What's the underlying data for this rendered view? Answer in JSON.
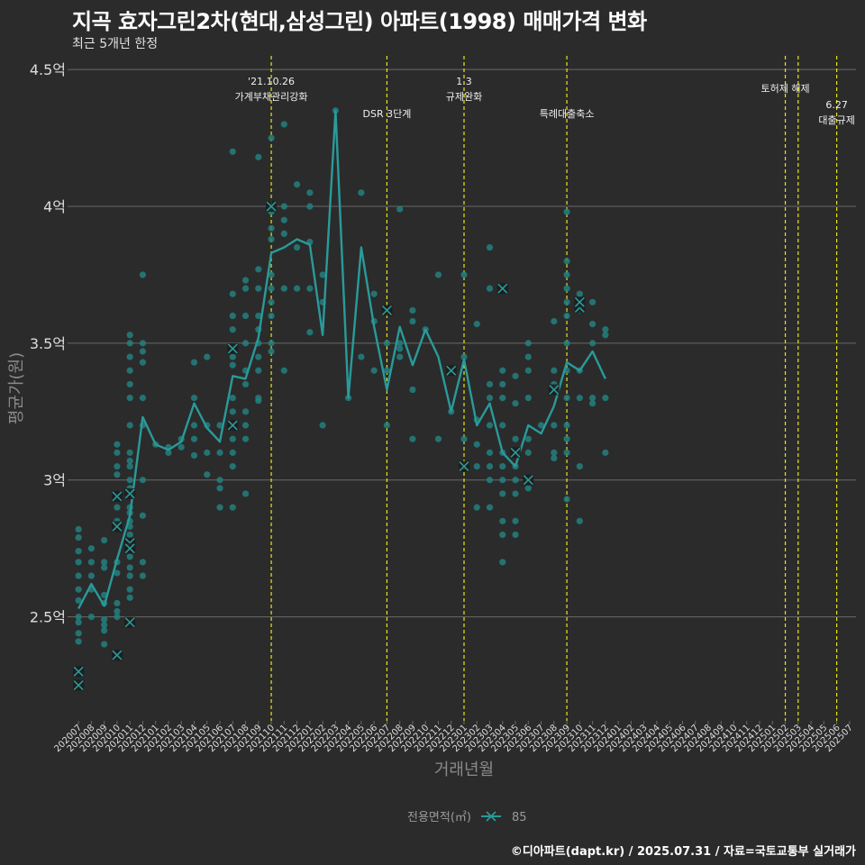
{
  "header": {
    "title": "지곡 효자그린2차(현대,삼성그린) 아파트(1998) 매매가격 변화",
    "subtitle": "최근 5개년 한정"
  },
  "footer": {
    "credit": "©디아파트(dapt.kr) / 2025.07.31 / 자료=국토교통부 실거래가"
  },
  "colors": {
    "background": "#2b2b2b",
    "grid": "#6a6a6a",
    "series": "#2a9a9a",
    "points": "#23807f",
    "event_line": "#e6e619",
    "text": "#dddddd"
  },
  "chart_data": {
    "type": "line",
    "xlabel": "거래년월",
    "ylabel": "평균가(원)",
    "ylim": [
      2.12,
      4.55
    ],
    "yticks": [
      {
        "value": 2.5,
        "label": "2.5억"
      },
      {
        "value": 3.0,
        "label": "3억"
      },
      {
        "value": 3.5,
        "label": "3.5억"
      },
      {
        "value": 4.0,
        "label": "4억"
      },
      {
        "value": 4.5,
        "label": "4.5억"
      }
    ],
    "categories": [
      "202007",
      "202008",
      "202009",
      "202010",
      "202011",
      "202012",
      "202101",
      "202102",
      "202103",
      "202104",
      "202105",
      "202106",
      "202107",
      "202108",
      "202109",
      "202110",
      "202111",
      "202112",
      "202201",
      "202202",
      "202203",
      "202204",
      "202205",
      "202206",
      "202207",
      "202208",
      "202209",
      "202210",
      "202211",
      "202212",
      "202301",
      "202302",
      "202303",
      "202304",
      "202305",
      "202306",
      "202307",
      "202308",
      "202309",
      "202310",
      "202311",
      "202312",
      "202401",
      "202402",
      "202403",
      "202404",
      "202405",
      "202406",
      "202407",
      "202408",
      "202409",
      "202410",
      "202411",
      "202412",
      "202501",
      "202502",
      "202503",
      "202504",
      "202505",
      "202506",
      "202507"
    ],
    "legend": {
      "title": "전용면적(㎡)",
      "entries": [
        "85"
      ]
    },
    "series": [
      {
        "name": "85",
        "points": [
          [
            "202007",
            2.53
          ],
          [
            "202008",
            2.62
          ],
          [
            "202009",
            2.54
          ],
          [
            "202010",
            2.71
          ],
          [
            "202011",
            2.87
          ],
          [
            "202012",
            3.23
          ],
          [
            "202101",
            3.13
          ],
          [
            "202102",
            3.11
          ],
          [
            "202103",
            3.14
          ],
          [
            "202104",
            3.28
          ],
          [
            "202105",
            3.19
          ],
          [
            "202106",
            3.14
          ],
          [
            "202107",
            3.38
          ],
          [
            "202108",
            3.37
          ],
          [
            "202109",
            3.52
          ],
          [
            "202110",
            3.83
          ],
          [
            "202111",
            3.85
          ],
          [
            "202112",
            3.88
          ],
          [
            "202201",
            3.86
          ],
          [
            "202202",
            3.53
          ],
          [
            "202203",
            4.35
          ],
          [
            "202204",
            3.3
          ],
          [
            "202205",
            3.85
          ],
          [
            "202206",
            3.56
          ],
          [
            "202207",
            3.33
          ],
          [
            "202208",
            3.56
          ],
          [
            "202209",
            3.42
          ],
          [
            "202210",
            3.55
          ],
          [
            "202211",
            3.45
          ],
          [
            "202212",
            3.25
          ],
          [
            "202301",
            3.44
          ],
          [
            "202302",
            3.2
          ],
          [
            "202303",
            3.28
          ],
          [
            "202304",
            3.1
          ],
          [
            "202305",
            3.05
          ],
          [
            "202306",
            3.2
          ],
          [
            "202307",
            3.17
          ],
          [
            "202308",
            3.27
          ],
          [
            "202309",
            3.43
          ],
          [
            "202310",
            3.4
          ],
          [
            "202311",
            3.47
          ],
          [
            "202312",
            3.37
          ]
        ]
      }
    ],
    "markers_x": [
      [
        "202007",
        2.3
      ],
      [
        "202007",
        2.25
      ],
      [
        "202010",
        2.36
      ],
      [
        "202010",
        2.94
      ],
      [
        "202010",
        2.83
      ],
      [
        "202011",
        2.95
      ],
      [
        "202011",
        2.77
      ],
      [
        "202011",
        2.75
      ],
      [
        "202011",
        2.48
      ],
      [
        "202107",
        3.48
      ],
      [
        "202107",
        3.2
      ],
      [
        "202110",
        4.0
      ],
      [
        "202207",
        3.62
      ],
      [
        "202212",
        3.4
      ],
      [
        "202301",
        3.05
      ],
      [
        "202304",
        3.7
      ],
      [
        "202305",
        3.1
      ],
      [
        "202306",
        3.0
      ],
      [
        "202308",
        3.33
      ],
      [
        "202310",
        3.63
      ],
      [
        "202310",
        3.65
      ]
    ],
    "scatter": [
      [
        "202007",
        2.82
      ],
      [
        "202007",
        2.79
      ],
      [
        "202007",
        2.74
      ],
      [
        "202007",
        2.7
      ],
      [
        "202007",
        2.65
      ],
      [
        "202007",
        2.6
      ],
      [
        "202007",
        2.56
      ],
      [
        "202007",
        2.5
      ],
      [
        "202007",
        2.48
      ],
      [
        "202007",
        2.44
      ],
      [
        "202007",
        2.41
      ],
      [
        "202008",
        2.75
      ],
      [
        "202008",
        2.7
      ],
      [
        "202008",
        2.65
      ],
      [
        "202008",
        2.6
      ],
      [
        "202008",
        2.5
      ],
      [
        "202009",
        2.78
      ],
      [
        "202009",
        2.7
      ],
      [
        "202009",
        2.68
      ],
      [
        "202009",
        2.58
      ],
      [
        "202009",
        2.55
      ],
      [
        "202009",
        2.49
      ],
      [
        "202009",
        2.47
      ],
      [
        "202009",
        2.45
      ],
      [
        "202009",
        2.4
      ],
      [
        "202010",
        3.13
      ],
      [
        "202010",
        3.1
      ],
      [
        "202010",
        3.05
      ],
      [
        "202010",
        3.02
      ],
      [
        "202010",
        2.9
      ],
      [
        "202010",
        2.85
      ],
      [
        "202010",
        2.7
      ],
      [
        "202010",
        2.66
      ],
      [
        "202010",
        2.55
      ],
      [
        "202010",
        2.52
      ],
      [
        "202010",
        2.5
      ],
      [
        "202011",
        3.53
      ],
      [
        "202011",
        3.5
      ],
      [
        "202011",
        3.45
      ],
      [
        "202011",
        3.4
      ],
      [
        "202011",
        3.35
      ],
      [
        "202011",
        3.3
      ],
      [
        "202011",
        3.2
      ],
      [
        "202011",
        3.1
      ],
      [
        "202011",
        3.07
      ],
      [
        "202011",
        3.05
      ],
      [
        "202011",
        3.0
      ],
      [
        "202011",
        2.97
      ],
      [
        "202011",
        2.9
      ],
      [
        "202011",
        2.88
      ],
      [
        "202011",
        2.85
      ],
      [
        "202011",
        2.83
      ],
      [
        "202011",
        2.8
      ],
      [
        "202011",
        2.72
      ],
      [
        "202011",
        2.68
      ],
      [
        "202011",
        2.65
      ],
      [
        "202011",
        2.6
      ],
      [
        "202011",
        2.57
      ],
      [
        "202012",
        3.75
      ],
      [
        "202012",
        3.5
      ],
      [
        "202012",
        3.47
      ],
      [
        "202012",
        3.43
      ],
      [
        "202012",
        3.3
      ],
      [
        "202012",
        3.2
      ],
      [
        "202012",
        3.0
      ],
      [
        "202012",
        2.87
      ],
      [
        "202012",
        2.7
      ],
      [
        "202012",
        2.65
      ],
      [
        "202101",
        3.13
      ],
      [
        "202102",
        3.12
      ],
      [
        "202102",
        3.1
      ],
      [
        "202103",
        3.15
      ],
      [
        "202103",
        3.12
      ],
      [
        "202104",
        3.43
      ],
      [
        "202104",
        3.3
      ],
      [
        "202104",
        3.2
      ],
      [
        "202104",
        3.15
      ],
      [
        "202104",
        3.09
      ],
      [
        "202105",
        3.45
      ],
      [
        "202105",
        3.2
      ],
      [
        "202105",
        3.1
      ],
      [
        "202105",
        3.02
      ],
      [
        "202106",
        3.2
      ],
      [
        "202106",
        3.1
      ],
      [
        "202106",
        3.0
      ],
      [
        "202106",
        2.97
      ],
      [
        "202106",
        2.9
      ],
      [
        "202107",
        4.2
      ],
      [
        "202107",
        3.68
      ],
      [
        "202107",
        3.6
      ],
      [
        "202107",
        3.55
      ],
      [
        "202107",
        3.45
      ],
      [
        "202107",
        3.42
      ],
      [
        "202107",
        3.3
      ],
      [
        "202107",
        3.25
      ],
      [
        "202107",
        3.15
      ],
      [
        "202107",
        3.1
      ],
      [
        "202107",
        3.05
      ],
      [
        "202107",
        2.9
      ],
      [
        "202108",
        3.73
      ],
      [
        "202108",
        3.7
      ],
      [
        "202108",
        3.6
      ],
      [
        "202108",
        3.5
      ],
      [
        "202108",
        3.4
      ],
      [
        "202108",
        3.35
      ],
      [
        "202108",
        3.25
      ],
      [
        "202108",
        3.2
      ],
      [
        "202108",
        3.15
      ],
      [
        "202108",
        2.95
      ],
      [
        "202109",
        4.18
      ],
      [
        "202109",
        3.77
      ],
      [
        "202109",
        3.7
      ],
      [
        "202109",
        3.6
      ],
      [
        "202109",
        3.55
      ],
      [
        "202109",
        3.5
      ],
      [
        "202109",
        3.45
      ],
      [
        "202109",
        3.4
      ],
      [
        "202109",
        3.3
      ],
      [
        "202109",
        3.29
      ],
      [
        "202110",
        4.25
      ],
      [
        "202110",
        3.98
      ],
      [
        "202110",
        3.92
      ],
      [
        "202110",
        3.88
      ],
      [
        "202110",
        3.75
      ],
      [
        "202110",
        3.7
      ],
      [
        "202110",
        3.65
      ],
      [
        "202110",
        3.6
      ],
      [
        "202110",
        3.5
      ],
      [
        "202110",
        3.47
      ],
      [
        "202111",
        4.3
      ],
      [
        "202111",
        4.0
      ],
      [
        "202111",
        3.95
      ],
      [
        "202111",
        3.9
      ],
      [
        "202111",
        3.7
      ],
      [
        "202111",
        3.4
      ],
      [
        "202112",
        4.08
      ],
      [
        "202112",
        3.85
      ],
      [
        "202112",
        3.7
      ],
      [
        "202201",
        4.05
      ],
      [
        "202201",
        4.0
      ],
      [
        "202201",
        3.87
      ],
      [
        "202201",
        3.7
      ],
      [
        "202201",
        3.54
      ],
      [
        "202202",
        3.75
      ],
      [
        "202202",
        3.65
      ],
      [
        "202202",
        3.2
      ],
      [
        "202203",
        4.35
      ],
      [
        "202204",
        3.3
      ],
      [
        "202205",
        4.05
      ],
      [
        "202205",
        3.45
      ],
      [
        "202206",
        3.68
      ],
      [
        "202206",
        3.58
      ],
      [
        "202206",
        3.4
      ],
      [
        "202207",
        3.5
      ],
      [
        "202207",
        3.4
      ],
      [
        "202207",
        3.2
      ],
      [
        "202208",
        3.99
      ],
      [
        "202208",
        3.5
      ],
      [
        "202208",
        3.48
      ],
      [
        "202208",
        3.45
      ],
      [
        "202209",
        3.62
      ],
      [
        "202209",
        3.58
      ],
      [
        "202209",
        3.33
      ],
      [
        "202209",
        3.15
      ],
      [
        "202210",
        3.55
      ],
      [
        "202211",
        3.75
      ],
      [
        "202211",
        3.15
      ],
      [
        "202212",
        3.25
      ],
      [
        "202301",
        3.75
      ],
      [
        "202301",
        3.45
      ],
      [
        "202301",
        3.15
      ],
      [
        "202302",
        3.57
      ],
      [
        "202302",
        3.22
      ],
      [
        "202302",
        3.13
      ],
      [
        "202302",
        3.05
      ],
      [
        "202302",
        2.9
      ],
      [
        "202303",
        3.85
      ],
      [
        "202303",
        3.7
      ],
      [
        "202303",
        3.35
      ],
      [
        "202303",
        3.3
      ],
      [
        "202303",
        3.2
      ],
      [
        "202303",
        3.1
      ],
      [
        "202303",
        3.05
      ],
      [
        "202303",
        3.0
      ],
      [
        "202303",
        2.9
      ],
      [
        "202304",
        3.4
      ],
      [
        "202304",
        3.35
      ],
      [
        "202304",
        3.3
      ],
      [
        "202304",
        3.2
      ],
      [
        "202304",
        3.1
      ],
      [
        "202304",
        3.05
      ],
      [
        "202304",
        3.0
      ],
      [
        "202304",
        2.95
      ],
      [
        "202304",
        2.85
      ],
      [
        "202304",
        2.8
      ],
      [
        "202304",
        2.7
      ],
      [
        "202305",
        3.38
      ],
      [
        "202305",
        3.28
      ],
      [
        "202305",
        3.15
      ],
      [
        "202305",
        3.05
      ],
      [
        "202305",
        3.0
      ],
      [
        "202305",
        2.95
      ],
      [
        "202305",
        2.85
      ],
      [
        "202305",
        2.8
      ],
      [
        "202306",
        3.5
      ],
      [
        "202306",
        3.45
      ],
      [
        "202306",
        3.4
      ],
      [
        "202306",
        3.3
      ],
      [
        "202306",
        3.15
      ],
      [
        "202306",
        3.1
      ],
      [
        "202306",
        2.97
      ],
      [
        "202307",
        3.2
      ],
      [
        "202308",
        3.58
      ],
      [
        "202308",
        3.4
      ],
      [
        "202308",
        3.35
      ],
      [
        "202308",
        3.2
      ],
      [
        "202308",
        3.1
      ],
      [
        "202308",
        3.08
      ],
      [
        "202309",
        3.98
      ],
      [
        "202309",
        3.8
      ],
      [
        "202309",
        3.75
      ],
      [
        "202309",
        3.7
      ],
      [
        "202309",
        3.65
      ],
      [
        "202309",
        3.6
      ],
      [
        "202309",
        3.5
      ],
      [
        "202309",
        3.4
      ],
      [
        "202309",
        3.3
      ],
      [
        "202309",
        3.2
      ],
      [
        "202309",
        3.15
      ],
      [
        "202309",
        3.1
      ],
      [
        "202309",
        2.93
      ],
      [
        "202310",
        3.68
      ],
      [
        "202310",
        3.62
      ],
      [
        "202310",
        3.4
      ],
      [
        "202310",
        3.3
      ],
      [
        "202310",
        3.05
      ],
      [
        "202310",
        2.85
      ],
      [
        "202311",
        3.65
      ],
      [
        "202311",
        3.57
      ],
      [
        "202311",
        3.5
      ],
      [
        "202311",
        3.3
      ],
      [
        "202311",
        3.28
      ],
      [
        "202312",
        3.55
      ],
      [
        "202312",
        3.53
      ],
      [
        "202312",
        3.3
      ],
      [
        "202312",
        3.1
      ]
    ],
    "events": [
      {
        "x": "202110",
        "label1": "'21.10.26",
        "label2": "가계부채관리강화",
        "level": 0
      },
      {
        "x": "202207",
        "label1": "",
        "label2": "DSR 3단계",
        "level": 2
      },
      {
        "x": "202301",
        "label1": "1.3",
        "label2": "규제완화",
        "level": 0
      },
      {
        "x": "202309",
        "label1": "",
        "label2": "특례대출축소",
        "level": 2
      },
      {
        "x": "202502",
        "label1": "",
        "label2": "토허제 해제",
        "level": 1
      },
      {
        "x": "202503",
        "label1": "",
        "label2": "",
        "level": 1
      },
      {
        "x": "202506",
        "label1": "6.27",
        "label2": "대출규제",
        "level": 3
      }
    ]
  }
}
